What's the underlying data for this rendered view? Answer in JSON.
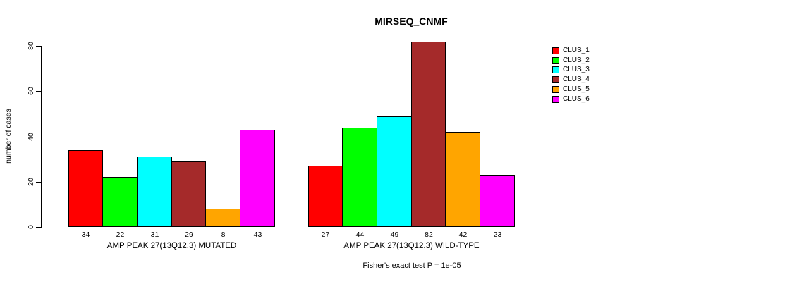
{
  "chart_data": {
    "type": "bar",
    "title": "MIRSEQ_CNMF",
    "ylabel": "number of cases",
    "xlabel": "",
    "ylim": [
      0,
      82
    ],
    "yticks": [
      0,
      20,
      40,
      60,
      80
    ],
    "grid": false,
    "legend_position": "right",
    "bar_value_labels_shown": true,
    "categories": [
      "AMP PEAK 27(13Q12.3) MUTATED",
      "AMP PEAK 27(13Q12.3) WILD-TYPE"
    ],
    "series": [
      {
        "name": "CLUS_1",
        "color": "#FF0000",
        "values": [
          34,
          27
        ]
      },
      {
        "name": "CLUS_2",
        "color": "#00FF00",
        "values": [
          22,
          44
        ]
      },
      {
        "name": "CLUS_3",
        "color": "#00FFFF",
        "values": [
          31,
          49
        ]
      },
      {
        "name": "CLUS_4",
        "color": "#A52A2A",
        "values": [
          29,
          82
        ]
      },
      {
        "name": "CLUS_5",
        "color": "#FFA500",
        "values": [
          8,
          42
        ]
      },
      {
        "name": "CLUS_6",
        "color": "#FF00FF",
        "values": [
          43,
          23
        ]
      }
    ],
    "annotation": "Fisher's exact test P = 1e-05"
  },
  "colors": {
    "background": "#FFFFFF",
    "axis": "#000000",
    "text": "#000000"
  }
}
